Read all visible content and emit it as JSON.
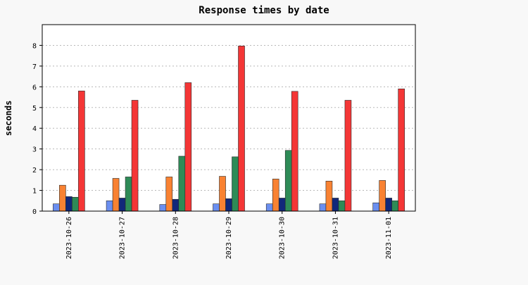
{
  "chart_data": {
    "type": "bar",
    "title": "Response times by date",
    "xlabel": "",
    "ylabel": "seconds",
    "ylim": [
      0,
      9
    ],
    "yticks": [
      0,
      1,
      2,
      3,
      4,
      5,
      6,
      7,
      8
    ],
    "grid": true,
    "categories": [
      "2023-10-26",
      "2023-10-27",
      "2023-10-28",
      "2023-10-29",
      "2023-10-30",
      "2023-10-31",
      "2023-11-01"
    ],
    "series": [
      {
        "color": "#6b8ff0",
        "values": [
          0.35,
          0.5,
          0.32,
          0.35,
          0.35,
          0.35,
          0.4
        ]
      },
      {
        "color": "#f98232",
        "values": [
          1.25,
          1.58,
          1.65,
          1.68,
          1.55,
          1.45,
          1.48
        ]
      },
      {
        "color": "#12287a",
        "values": [
          0.7,
          0.63,
          0.57,
          0.6,
          0.63,
          0.63,
          0.63
        ]
      },
      {
        "color": "#2e8b57",
        "values": [
          0.67,
          1.65,
          2.65,
          2.62,
          2.93,
          0.5,
          0.5
        ]
      },
      {
        "color": "#f43636",
        "values": [
          5.8,
          5.35,
          6.2,
          7.97,
          5.78,
          5.35,
          5.9
        ]
      }
    ]
  }
}
